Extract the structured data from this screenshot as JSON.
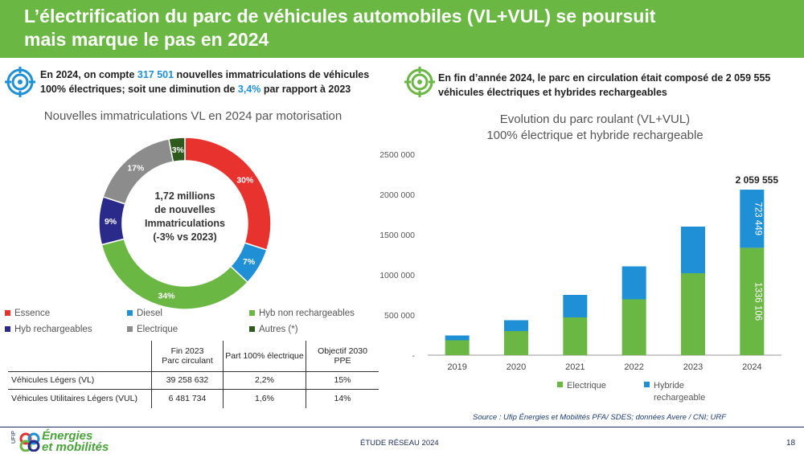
{
  "header": {
    "title_line1": "L’électrification du parc de véhicules automobiles (VL+VUL) se poursuit",
    "title_line2": "mais marque le pas en 2024"
  },
  "left_intro": {
    "part1": "En 2024, on compte ",
    "value1": "317 501",
    "part2": " nouvelles immatriculations de véhicules",
    "part3": "100% électriques; soit une diminution de ",
    "value2": "3,4%",
    "part4": " par rapport à 2023"
  },
  "right_intro": {
    "line1": "En fin d’année 2024, le parc en circulation était composé de 2 059 555",
    "line2": "véhicules électriques et hybrides rechargeables"
  },
  "colors": {
    "essence": "#e8322e",
    "diesel": "#1f8fd6",
    "hyb_non_rech": "#6ab744",
    "hyb_rech": "#2a2a8a",
    "electrique": "#8c8c8c",
    "autres": "#2e5a1e",
    "header_green": "#6ab744"
  },
  "chart_data": [
    {
      "type": "pie",
      "title": "Nouvelles immatriculations VL en 2024 par motorisation",
      "center_text": [
        "1,72 millions",
        "de nouvelles",
        "Immatriculations",
        "(-3% vs 2023)"
      ],
      "slices": [
        {
          "name": "Essence",
          "value": 30,
          "label": "30%"
        },
        {
          "name": "Diesel",
          "value": 7,
          "label": "7%"
        },
        {
          "name": "Hyb non rechargeables",
          "value": 34,
          "label": "34%"
        },
        {
          "name": "Hyb rechargeables",
          "value": 9,
          "label": "9%"
        },
        {
          "name": "Electrique",
          "value": 17,
          "label": "17%"
        },
        {
          "name": "Autres (*)",
          "value": 3,
          "label": "3%"
        }
      ]
    },
    {
      "type": "bar",
      "stacked": true,
      "title": "Evolution du parc roulant (VL+VUL)",
      "subtitle": "100% électrique et hybride rechargeable",
      "categories": [
        "2019",
        "2020",
        "2021",
        "2022",
        "2023",
        "2024"
      ],
      "series": [
        {
          "name": "Electrique",
          "values": [
            185000,
            300000,
            470000,
            695000,
            1020000,
            1336106
          ]
        },
        {
          "name": "Hybride rechargeable",
          "values": [
            60000,
            135000,
            280000,
            410000,
            580000,
            723449
          ]
        }
      ],
      "ylim": [
        0,
        2500000
      ],
      "yticks": [
        "2500 000",
        "2000 000",
        "1500 000",
        "1000 000",
        "500 000",
        "-"
      ],
      "total_label": "2 059 555",
      "bar_label_electrique": "1336 106",
      "bar_label_hybride": "723 449",
      "legend_electrique": "Electrique",
      "legend_hybride_line1": "Hybride",
      "legend_hybride_line2": "rechargeable"
    }
  ],
  "table": {
    "headers": [
      [
        "Fin 2023",
        "Parc circulant"
      ],
      [
        "Part 100% électrique"
      ],
      [
        "Objectif 2030",
        "PPE"
      ]
    ],
    "rows": [
      [
        "Véhicules Légers (VL)",
        "39 258 632",
        "2,2%",
        "15%"
      ],
      [
        "Véhicules Utilitaires Légers (VUL)",
        "6 481 734",
        "1,6%",
        "14%"
      ]
    ]
  },
  "source": "Source : Ufip Énergies et Mobilités PFA/ SDES; données Avere / CNI; URF",
  "footer": {
    "center": "ÉTUDE RÉSEAU 2024",
    "page": "18",
    "logo_line1": "Énergies",
    "logo_line2": "et mobilités",
    "logo_side": "UFIP"
  }
}
